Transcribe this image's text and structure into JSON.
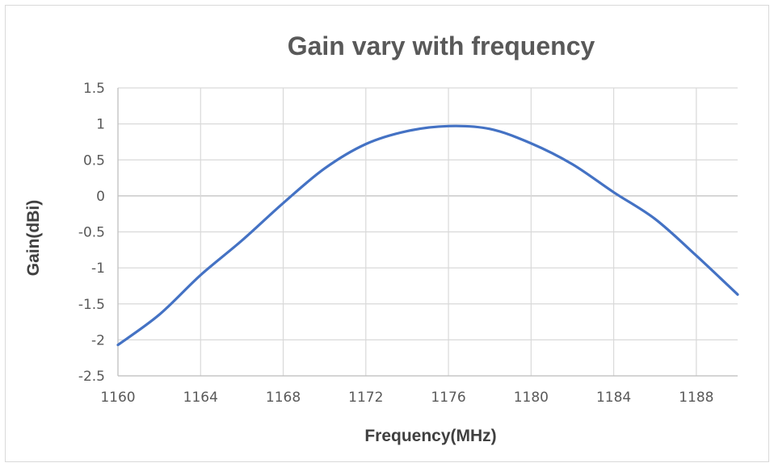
{
  "chart_data": {
    "type": "line",
    "title": "Gain vary with frequency",
    "xlabel": "Frequency(MHz)",
    "ylabel": "Gain(dBi)",
    "xlim": [
      1160,
      1190
    ],
    "ylim": [
      -2.5,
      1.5
    ],
    "xticks": [
      1160,
      1164,
      1168,
      1172,
      1176,
      1180,
      1184,
      1188
    ],
    "yticks": [
      1.5,
      1,
      0.5,
      0,
      -0.5,
      -1,
      -1.5,
      -2,
      -2.5
    ],
    "ytick_labels": [
      "1.5",
      "1",
      "0.5",
      "0",
      "-0.5",
      "-1",
      "-1.5",
      "-2",
      "-2.5"
    ],
    "grid": true,
    "legend": "none",
    "series": [
      {
        "color": "#4472c4",
        "x": [
          1160,
          1162,
          1164,
          1166,
          1168,
          1170,
          1172,
          1174,
          1176,
          1178,
          1180,
          1182,
          1184,
          1186,
          1188,
          1190
        ],
        "y": [
          -2.07,
          -1.65,
          -1.1,
          -0.62,
          -0.1,
          0.38,
          0.72,
          0.9,
          0.97,
          0.93,
          0.73,
          0.44,
          0.05,
          -0.32,
          -0.83,
          -1.37
        ]
      }
    ]
  }
}
